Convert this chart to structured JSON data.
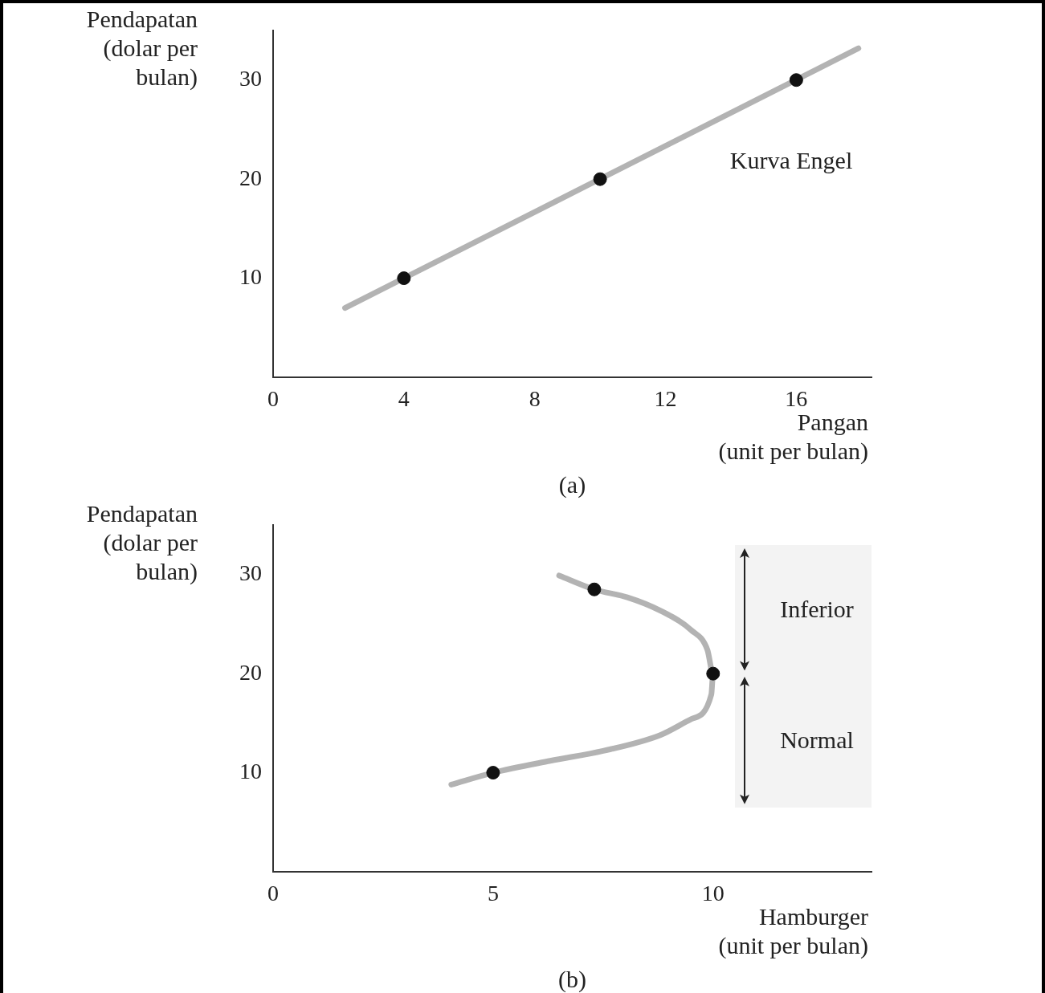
{
  "chart_data": [
    {
      "type": "line",
      "xlabel": "Pangan\n(unit per bulan)",
      "ylabel": "Pendapatan\n(dolar per\nbulan)",
      "xlim": [
        0,
        18.3
      ],
      "ylim": [
        0,
        35
      ],
      "xticks": [
        0,
        4,
        8,
        12,
        16
      ],
      "yticks": [
        10,
        20,
        30
      ],
      "grid": false,
      "legend": false,
      "series": [
        {
          "type": "line",
          "color": "#b3b3b3",
          "marker": "none",
          "x": [
            2.2,
            17.9
          ],
          "values": [
            7,
            33.2
          ]
        },
        {
          "type": "scatter",
          "color": "#111111",
          "marker": "circle",
          "x": [
            4,
            10,
            16
          ],
          "values": [
            10,
            20,
            30
          ]
        }
      ],
      "annotations": [
        "Kurva Engel",
        "(a)"
      ]
    },
    {
      "type": "line",
      "xlabel": "Hamburger\n(unit per bulan)",
      "ylabel": "Pendapatan\n(dolar per\nbulan)",
      "xlim": [
        0,
        13.6
      ],
      "ylim": [
        0,
        35
      ],
      "xticks": [
        0,
        5,
        10
      ],
      "yticks": [
        10,
        20,
        30
      ],
      "grid": false,
      "legend": false,
      "series": [
        {
          "type": "line",
          "color": "#b3b3b3",
          "marker": "none",
          "x": [
            4.05,
            5,
            6.3,
            7.5,
            8.8,
            9.5,
            9.96,
            10,
            9.87,
            9.5,
            8.78,
            8.05,
            7.3,
            6.5
          ],
          "values": [
            8.8,
            10,
            11.2,
            12.2,
            13.8,
            15.4,
            17.9,
            20,
            22.4,
            24.4,
            26.4,
            27.7,
            28.5,
            29.9
          ]
        },
        {
          "type": "scatter",
          "color": "#111111",
          "marker": "circle",
          "x": [
            5,
            10,
            7.3
          ],
          "values": [
            10,
            20,
            28.5
          ]
        }
      ],
      "bands": [
        {
          "axis": "y",
          "from": 20,
          "to": 33,
          "label": "Inferior"
        },
        {
          "axis": "y",
          "from": 6.5,
          "to": 20,
          "label": "Normal"
        }
      ],
      "annotations": [
        "(b)"
      ]
    }
  ]
}
